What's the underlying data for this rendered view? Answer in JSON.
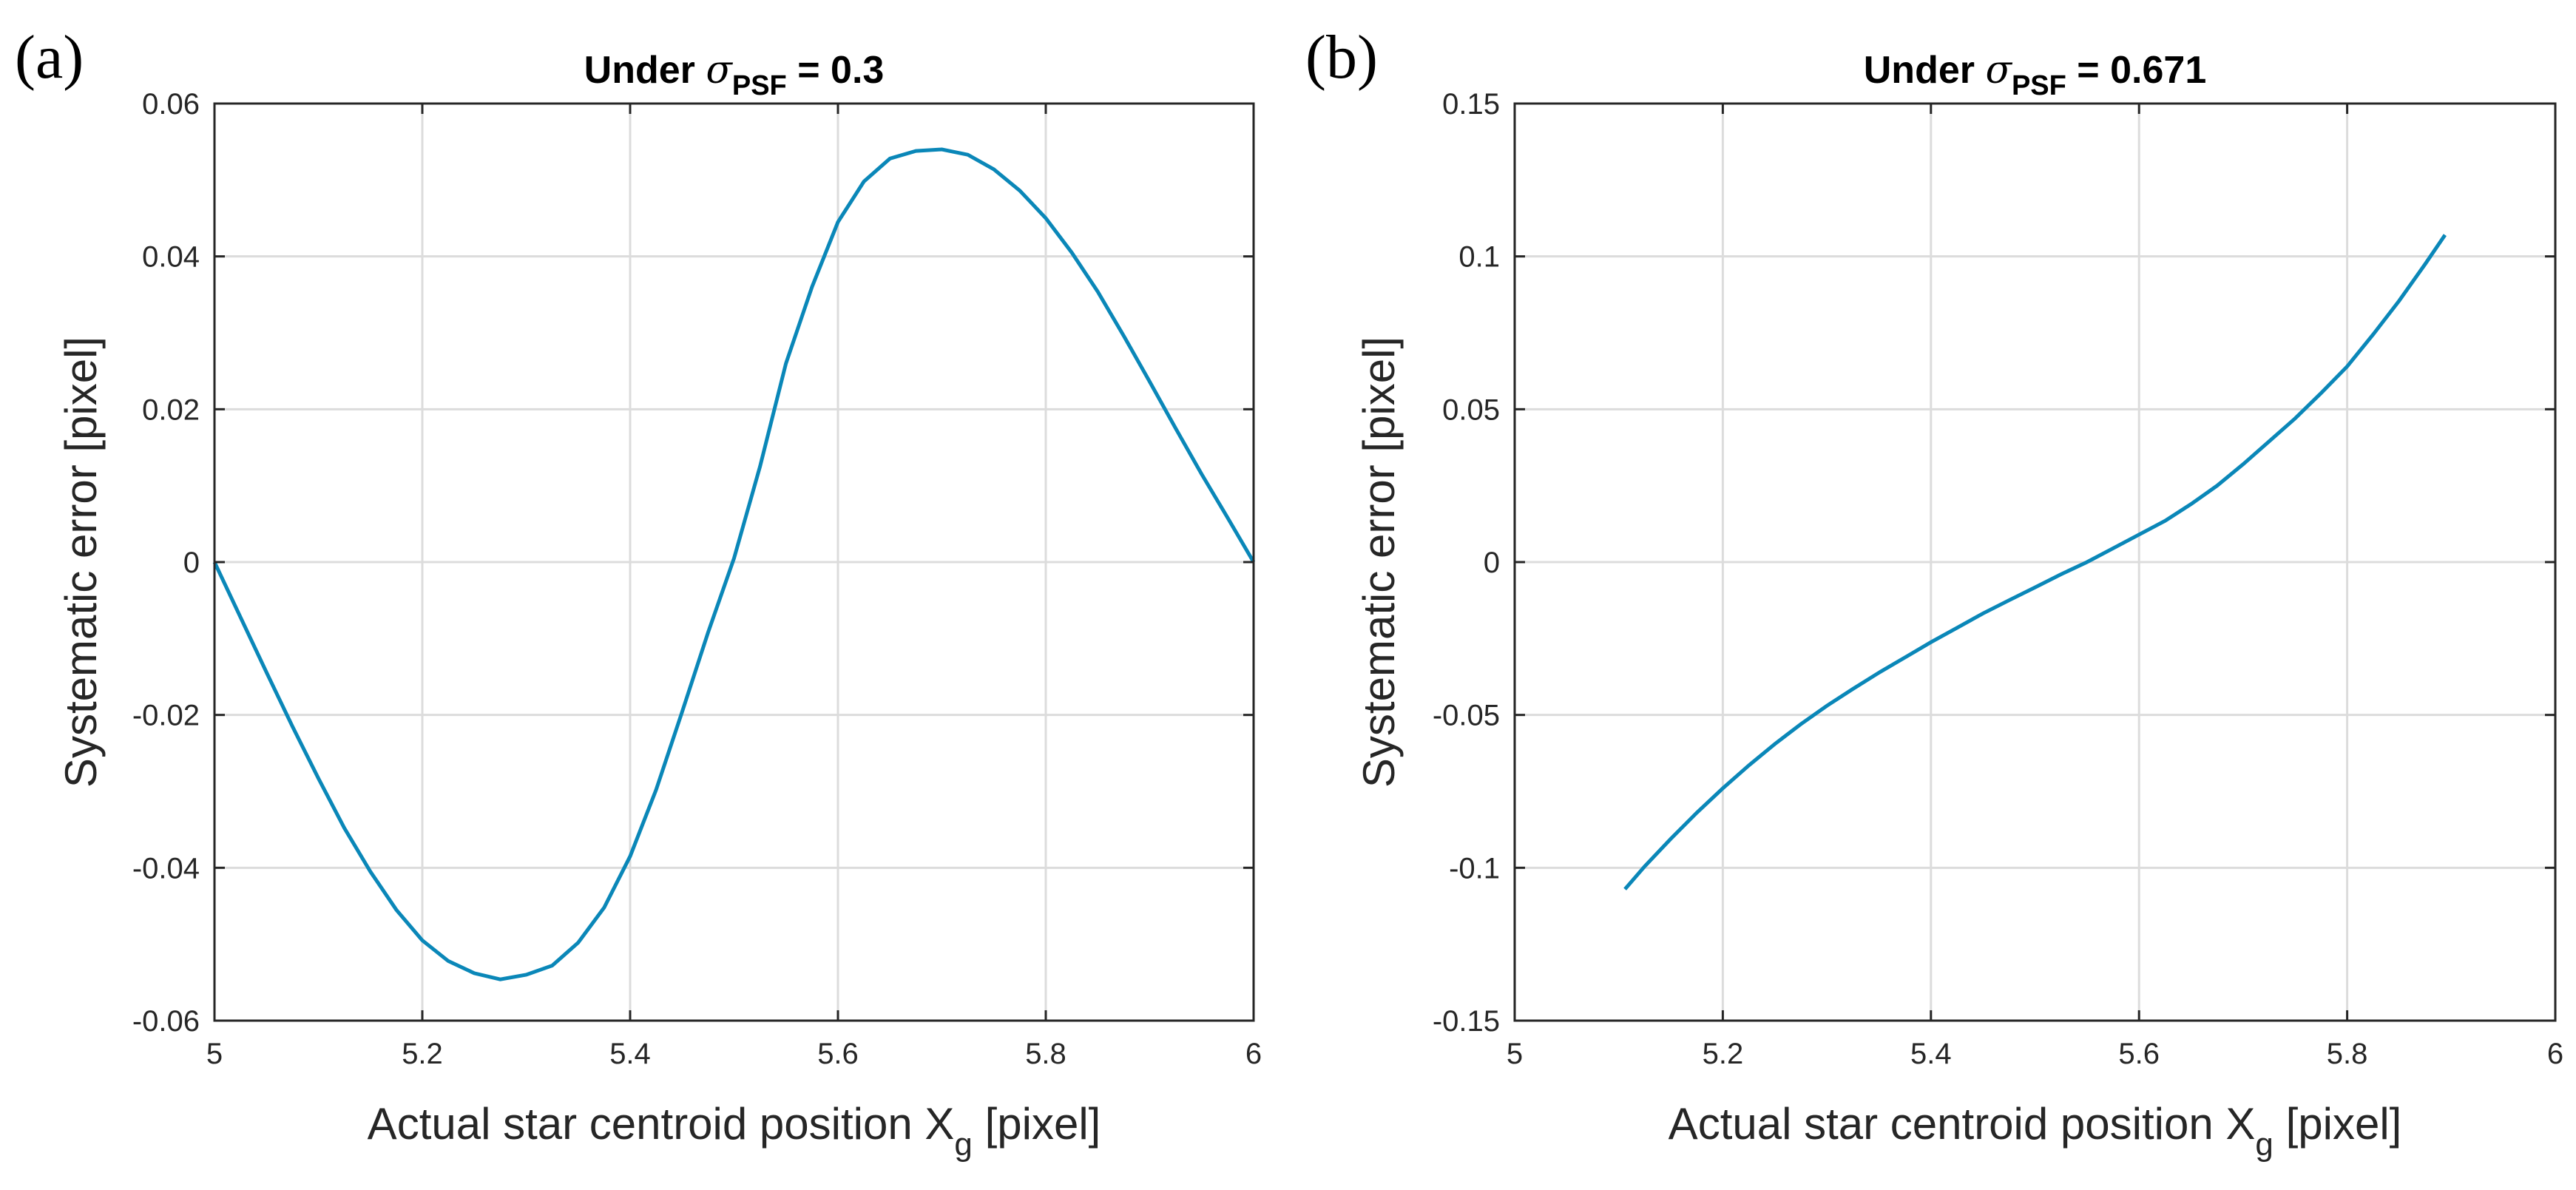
{
  "chart_data": [
    {
      "type": "line",
      "panel_label": "(a)",
      "title_parts": {
        "prefix": "Under ",
        "symbol": "σ",
        "subscript": "PSF",
        "suffix": " = 0.3"
      },
      "xlabel_parts": {
        "text": "Actual star centroid position X",
        "subscript": "g",
        "suffix": " [pixel]"
      },
      "ylabel": "Systematic error [pixel]",
      "xlim": [
        5,
        6
      ],
      "ylim": [
        -0.06,
        0.06
      ],
      "xticks": [
        5,
        5.2,
        5.4,
        5.6,
        5.8,
        6
      ],
      "xtick_labels": [
        "5",
        "5.2",
        "5.4",
        "5.6",
        "5.8",
        "6"
      ],
      "yticks": [
        -0.06,
        -0.04,
        -0.02,
        0,
        0.02,
        0.04,
        0.06
      ],
      "ytick_labels": [
        "-0.06",
        "-0.04",
        "-0.02",
        "0",
        "0.02",
        "0.04",
        "0.06"
      ],
      "grid": true,
      "color": "#0a87b8",
      "series": [
        {
          "name": "systematic error",
          "x": [
            5.0,
            5.025,
            5.05,
            5.075,
            5.1,
            5.125,
            5.15,
            5.175,
            5.2,
            5.225,
            5.25,
            5.275,
            5.3,
            5.325,
            5.35,
            5.375,
            5.4,
            5.425,
            5.45,
            5.475,
            5.5,
            5.525,
            5.55,
            5.575,
            5.6,
            5.625,
            5.65,
            5.675,
            5.7,
            5.725,
            5.75,
            5.775,
            5.8,
            5.825,
            5.85,
            5.875,
            5.9,
            5.925,
            5.95,
            5.975,
            6.0
          ],
          "y": [
            0.0,
            -0.0072,
            -0.0144,
            -0.0215,
            -0.0283,
            -0.0348,
            -0.0405,
            -0.0455,
            -0.0495,
            -0.0522,
            -0.0538,
            -0.0546,
            -0.054,
            -0.0528,
            -0.0498,
            -0.0452,
            -0.0385,
            -0.0298,
            -0.0196,
            -0.0092,
            0.0005,
            0.0125,
            0.026,
            0.036,
            0.0445,
            0.0498,
            0.0528,
            0.0538,
            0.054,
            0.0533,
            0.0514,
            0.0486,
            0.045,
            0.0405,
            0.0354,
            0.0296,
            0.0236,
            0.0175,
            0.0115,
            0.0058,
            0.0
          ]
        }
      ]
    },
    {
      "type": "line",
      "panel_label": "(b)",
      "title_parts": {
        "prefix": "Under ",
        "symbol": "σ",
        "subscript": "PSF",
        "suffix": " = 0.671"
      },
      "xlabel_parts": {
        "text": "Actual star centroid position X",
        "subscript": "g",
        "suffix": " [pixel]"
      },
      "ylabel": "Systematic error [pixel]",
      "xlim": [
        5,
        6
      ],
      "ylim": [
        -0.15,
        0.15
      ],
      "xticks": [
        5,
        5.2,
        5.4,
        5.6,
        5.8,
        6
      ],
      "xtick_labels": [
        "5",
        "5.2",
        "5.4",
        "5.6",
        "5.8",
        "6"
      ],
      "yticks": [
        -0.15,
        -0.1,
        -0.05,
        0,
        0.05,
        0.1,
        0.15
      ],
      "ytick_labels": [
        "-0.15",
        "-0.1",
        "-0.05",
        "0",
        "0.05",
        "0.1",
        "0.15"
      ],
      "grid": true,
      "color": "#0a87b8",
      "series": [
        {
          "name": "systematic error",
          "x": [
            5.106,
            5.125,
            5.15,
            5.175,
            5.2,
            5.225,
            5.25,
            5.275,
            5.3,
            5.325,
            5.35,
            5.375,
            5.4,
            5.425,
            5.45,
            5.475,
            5.5,
            5.525,
            5.55,
            5.575,
            5.6,
            5.625,
            5.65,
            5.675,
            5.7,
            5.725,
            5.75,
            5.775,
            5.8,
            5.825,
            5.85,
            5.875,
            5.894
          ],
          "y": [
            -0.107,
            -0.0995,
            -0.0905,
            -0.082,
            -0.074,
            -0.0665,
            -0.0595,
            -0.053,
            -0.047,
            -0.0415,
            -0.0362,
            -0.0312,
            -0.0262,
            -0.0215,
            -0.0168,
            -0.0125,
            -0.0083,
            -0.004,
            0.0,
            0.0045,
            0.009,
            0.0135,
            0.019,
            0.025,
            0.032,
            0.0395,
            0.047,
            0.0553,
            0.064,
            0.0745,
            0.0855,
            0.0975,
            0.107
          ]
        }
      ]
    }
  ]
}
